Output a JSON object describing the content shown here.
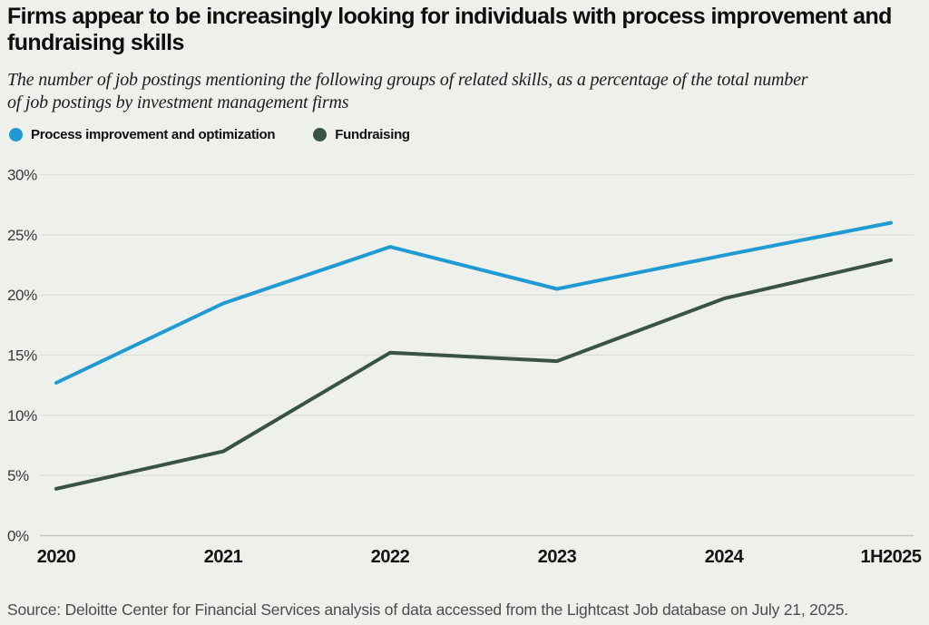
{
  "header": {
    "title_line1": "Firms appear to be increasingly looking for individuals with process improvement and",
    "title_line2": "fundraising skills",
    "subtitle_line1": "The number of job postings mentioning the following groups of related skills, as a percentage of the total number",
    "subtitle_line2": "of job postings by investment management firms"
  },
  "legend": {
    "items": [
      {
        "label": "Process improvement and optimization",
        "color": "#1f9ad3"
      },
      {
        "label": "Fundraising",
        "color": "#3a5246"
      }
    ]
  },
  "chart_data": {
    "type": "line",
    "categories": [
      "2020",
      "2021",
      "2022",
      "2023",
      "2024",
      "1H2025"
    ],
    "series": [
      {
        "name": "Process improvement and optimization",
        "color": "#1f9ad3",
        "values": [
          12.7,
          19.3,
          24.0,
          20.5,
          23.3,
          26.0
        ]
      },
      {
        "name": "Fundraising",
        "color": "#3a5246",
        "values": [
          3.9,
          7.0,
          15.2,
          14.5,
          19.7,
          22.9
        ]
      }
    ],
    "title": "Firms appear to be increasingly looking for individuals with process improvement and fundraising skills",
    "xlabel": "",
    "ylabel": "",
    "ylim": [
      0,
      30
    ],
    "ytick_step": 5,
    "ytick_suffix": "%",
    "grid": true,
    "grid_color": "#d9dbd6",
    "axis_color": "#c3c5c0",
    "legend_position": "top-left"
  },
  "footer": {
    "source": "Source: Deloitte Center for Financial Services analysis of data accessed from the Lightcast Job database on July 21, 2025."
  }
}
